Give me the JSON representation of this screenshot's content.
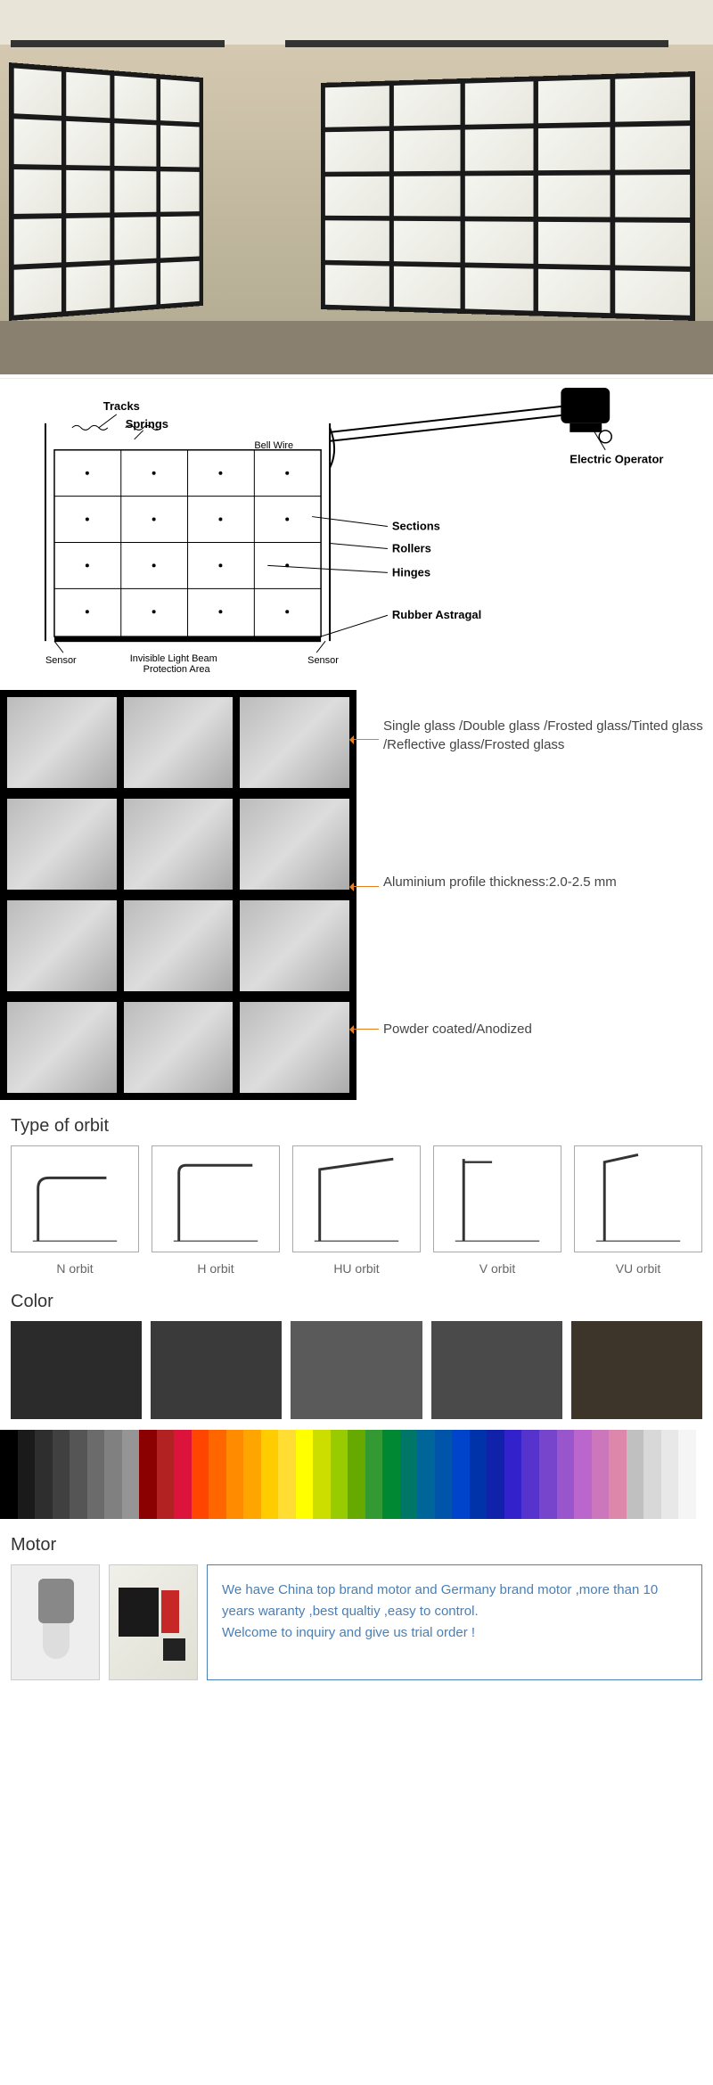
{
  "hero": {
    "door_rows": 5,
    "door1_cols": 4,
    "door2_cols": 5
  },
  "diagram": {
    "labels": {
      "tracks": "Tracks",
      "springs": "Springs",
      "operator": "Electric Operator",
      "sections": "Sections",
      "rollers": "Rollers",
      "hinges": "Hinges",
      "astragal": "Rubber Astragal",
      "sensor_l": "Sensor",
      "sensor_r": "Sensor",
      "beam": "Invisible Light Beam",
      "beam2": "Protection Area",
      "bell": "Bell Wire"
    }
  },
  "callouts": {
    "glass": "Single glass /Double glass /Frosted glass/Tinted glass /Reflective glass/Frosted glass",
    "profile": "Aluminium profile thickness:2.0-2.5 mm",
    "coating": "Powder coated/Anodized"
  },
  "orbit": {
    "title": "Type of orbit",
    "types": [
      "N orbit",
      "H orbit",
      "HU orbit",
      "V orbit",
      "VU orbit"
    ]
  },
  "color": {
    "title": "Color",
    "big_swatches": [
      "#2b2b2b",
      "#3a3a3a",
      "#5a5a5a",
      "#4a4a4a",
      "#3d342a"
    ],
    "strip": [
      "#000000",
      "#1a1a1a",
      "#2e2e2e",
      "#404040",
      "#555555",
      "#6b6b6b",
      "#808080",
      "#959595",
      "#8b0000",
      "#b22222",
      "#dc143c",
      "#ff4500",
      "#ff6600",
      "#ff8c00",
      "#ffa500",
      "#ffcc00",
      "#ffdd33",
      "#ffff00",
      "#ccdd00",
      "#99cc00",
      "#66aa00",
      "#339933",
      "#008833",
      "#007766",
      "#006699",
      "#0055aa",
      "#0044cc",
      "#0033aa",
      "#1122aa",
      "#3322cc",
      "#5533cc",
      "#7744cc",
      "#9955cc",
      "#bb66cc",
      "#cc77bb",
      "#dd88aa",
      "#c0c0c0",
      "#d8d8d8",
      "#e8e8e8",
      "#f5f5f5",
      "#ffffff"
    ]
  },
  "motor": {
    "title": "Motor",
    "note_line1": "We have China top brand motor and Germany brand motor ,more than 10 years waranty ,best qualtiy ,easy to control.",
    "note_line2": "Welcome to inquiry and give us trial order !"
  }
}
